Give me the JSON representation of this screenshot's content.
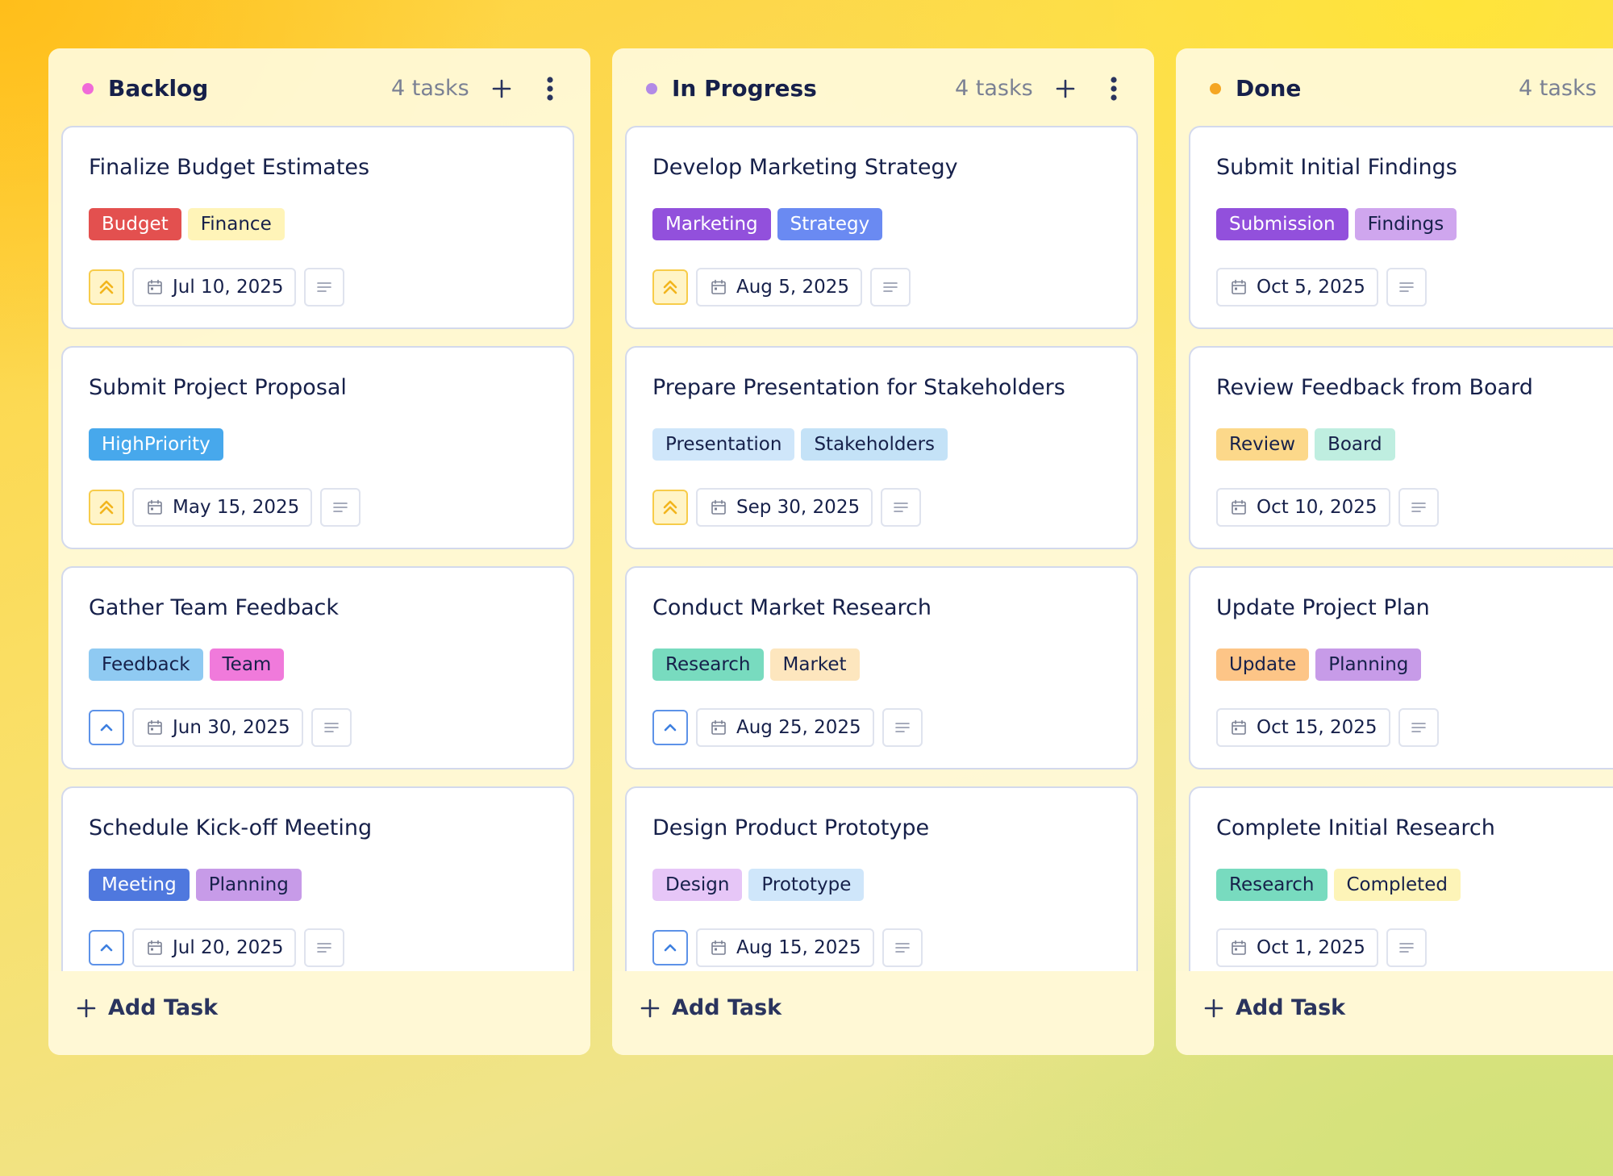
{
  "colors": {
    "backlog_dot": "#f06ad8",
    "in_progress_dot": "#b28ae6",
    "done_dot": "#f5a623",
    "priority_high": "#f2b51d",
    "priority_low": "#3d7fe0"
  },
  "columns": [
    {
      "id": "backlog",
      "title": "Backlog",
      "count": "4 tasks",
      "dot_color": "#f06ad8",
      "add_task_label": "Add Task",
      "cards": [
        {
          "title": "Finalize Budget Estimates",
          "tags": [
            {
              "label": "Budget",
              "bg": "#e3504f",
              "fg": "#ffffff"
            },
            {
              "label": "Finance",
              "bg": "#fff4b8",
              "fg": "#16204a"
            }
          ],
          "priority": "high",
          "priority_icon": "double-chevron-up-icon",
          "date": "Jul 10, 2025"
        },
        {
          "title": "Submit Project Proposal",
          "tags": [
            {
              "label": "HighPriority",
              "bg": "#47a8ec",
              "fg": "#ffffff"
            }
          ],
          "priority": "high",
          "priority_icon": "double-chevron-up-icon",
          "date": "May 15, 2025"
        },
        {
          "title": "Gather Team Feedback",
          "tags": [
            {
              "label": "Feedback",
              "bg": "#8fcaf2",
              "fg": "#16204a"
            },
            {
              "label": "Team",
              "bg": "#f07adb",
              "fg": "#16204a"
            }
          ],
          "priority": "low",
          "priority_icon": "chevron-up-icon",
          "date": "Jun 30, 2025"
        },
        {
          "title": "Schedule Kick-off Meeting",
          "tags": [
            {
              "label": "Meeting",
              "bg": "#4f78de",
              "fg": "#ffffff"
            },
            {
              "label": "Planning",
              "bg": "#c79be8",
              "fg": "#16204a"
            }
          ],
          "priority": "low",
          "priority_icon": "chevron-up-icon",
          "date": "Jul 20, 2025"
        }
      ]
    },
    {
      "id": "in-progress",
      "title": "In Progress",
      "count": "4 tasks",
      "dot_color": "#b28ae6",
      "add_task_label": "Add Task",
      "cards": [
        {
          "title": "Develop Marketing Strategy",
          "tags": [
            {
              "label": "Marketing",
              "bg": "#9250dc",
              "fg": "#ffffff"
            },
            {
              "label": "Strategy",
              "bg": "#6a8af2",
              "fg": "#ffffff"
            }
          ],
          "priority": "high",
          "priority_icon": "double-chevron-up-icon",
          "date": "Aug 5, 2025"
        },
        {
          "title": "Prepare Presentation for Stakeholders",
          "tags": [
            {
              "label": "Presentation",
              "bg": "#cfe6fa",
              "fg": "#16204a"
            },
            {
              "label": "Stakeholders",
              "bg": "#c4e2f7",
              "fg": "#16204a"
            }
          ],
          "priority": "high",
          "priority_icon": "double-chevron-up-icon",
          "date": "Sep 30, 2025"
        },
        {
          "title": "Conduct Market Research",
          "tags": [
            {
              "label": "Research",
              "bg": "#78dbbf",
              "fg": "#16204a"
            },
            {
              "label": "Market",
              "bg": "#fde6be",
              "fg": "#16204a"
            }
          ],
          "priority": "low",
          "priority_icon": "chevron-up-icon",
          "date": "Aug 25, 2025"
        },
        {
          "title": "Design Product Prototype",
          "tags": [
            {
              "label": "Design",
              "bg": "#e6c6f7",
              "fg": "#16204a"
            },
            {
              "label": "Prototype",
              "bg": "#cfe6fa",
              "fg": "#16204a"
            }
          ],
          "priority": "low",
          "priority_icon": "chevron-up-icon",
          "date": "Aug 15, 2025"
        }
      ]
    },
    {
      "id": "done",
      "title": "Done",
      "count": "4 tasks",
      "dot_color": "#f5a623",
      "add_task_label": "Add Task",
      "cards": [
        {
          "title": "Submit Initial Findings",
          "tags": [
            {
              "label": "Submission",
              "bg": "#9250dc",
              "fg": "#ffffff"
            },
            {
              "label": "Findings",
              "bg": "#cfa6ee",
              "fg": "#16204a"
            }
          ],
          "priority": "none",
          "priority_icon": "",
          "date": "Oct 5, 2025"
        },
        {
          "title": "Review Feedback from Board",
          "tags": [
            {
              "label": "Review",
              "bg": "#fcd88a",
              "fg": "#16204a"
            },
            {
              "label": "Board",
              "bg": "#bfeee0",
              "fg": "#16204a"
            }
          ],
          "priority": "none",
          "priority_icon": "",
          "date": "Oct 10, 2025"
        },
        {
          "title": "Update Project Plan",
          "tags": [
            {
              "label": "Update",
              "bg": "#fdc587",
              "fg": "#16204a"
            },
            {
              "label": "Planning",
              "bg": "#c79be8",
              "fg": "#16204a"
            }
          ],
          "priority": "none",
          "priority_icon": "",
          "date": "Oct 15, 2025"
        },
        {
          "title": "Complete Initial Research",
          "tags": [
            {
              "label": "Research",
              "bg": "#78dbbf",
              "fg": "#16204a"
            },
            {
              "label": "Completed",
              "bg": "#fdf4b8",
              "fg": "#16204a"
            }
          ],
          "priority": "none",
          "priority_icon": "",
          "date": "Oct 1, 2025"
        }
      ]
    }
  ]
}
